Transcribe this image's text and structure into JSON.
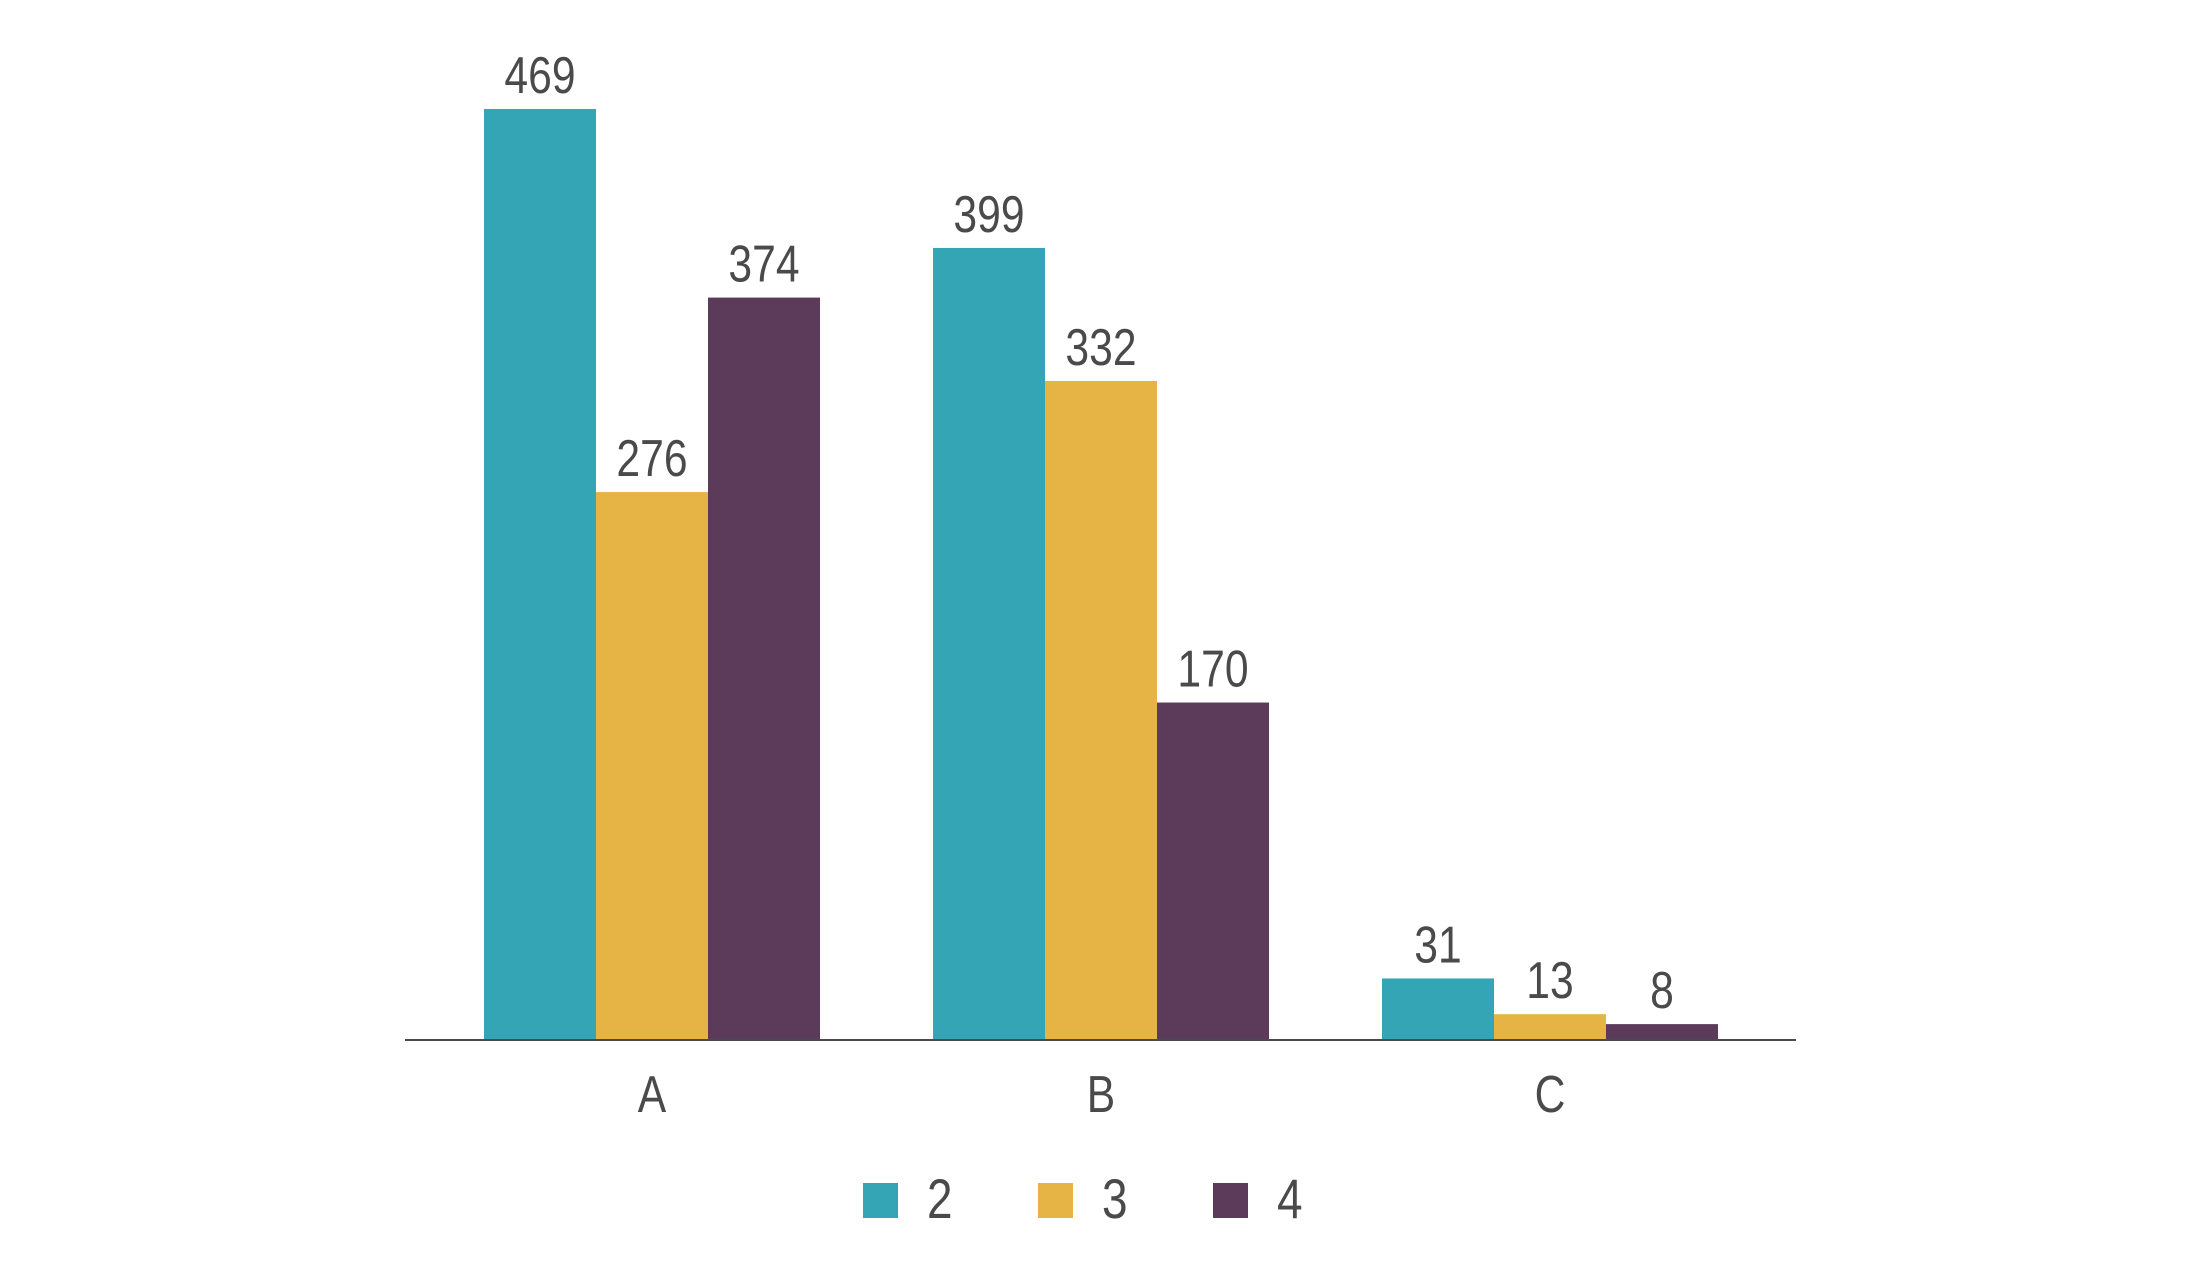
{
  "chart_data": {
    "type": "bar",
    "title": "",
    "xlabel": "",
    "ylabel": "",
    "categories": [
      "A",
      "B",
      "C"
    ],
    "series": [
      {
        "name": "2",
        "values": [
          469,
          399,
          31
        ],
        "color": "#33A5B5"
      },
      {
        "name": "3",
        "values": [
          276,
          332,
          13
        ],
        "color": "#E6B444"
      },
      {
        "name": "4",
        "values": [
          374,
          170,
          8
        ],
        "color": "#5B3A5A"
      }
    ],
    "ylim": [
      0,
      469
    ],
    "grid": false,
    "legend_position": "bottom-center",
    "data_labels": true
  }
}
